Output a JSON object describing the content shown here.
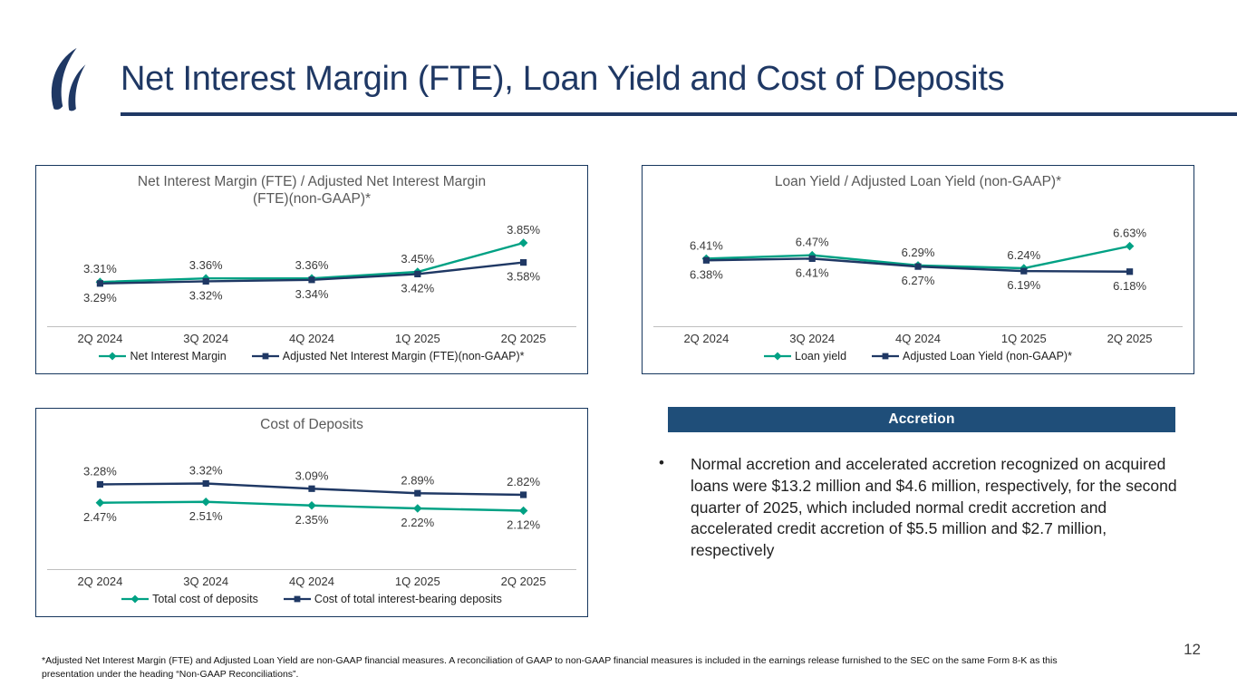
{
  "slide": {
    "title": "Net Interest Margin (FTE), Loan Yield and Cost of Deposits",
    "page_number": "12",
    "footnote": "*Adjusted Net Interest Margin (FTE) and Adjusted Loan Yield are non-GAAP financial measures. A reconciliation of GAAP to non-GAAP financial measures is included in the earnings release furnished to the SEC on the same Form 8-K as this presentation under the heading “Non-GAAP Reconciliations”."
  },
  "accretion": {
    "title": "Accretion",
    "bullet": "Normal accretion and accelerated accretion recognized on acquired loans were $13.2 million and $4.6 million, respectively, for the second quarter of 2025, which included normal credit accretion and accelerated credit accretion of $5.5 million and $2.7 million, respectively"
  },
  "colors": {
    "accent_navy": "#1F3864",
    "accent_green": "#00A184",
    "accretion_bar": "#1F4E79",
    "axis_gray": "#BFBFBF"
  },
  "chart_data": [
    {
      "type": "line",
      "title": "Net Interest Margin (FTE) / Adjusted Net Interest Margin (FTE)(non-GAAP)*",
      "categories": [
        "2Q 2024",
        "3Q 2024",
        "4Q 2024",
        "1Q 2025",
        "2Q 2025"
      ],
      "ylim": [
        3.0,
        4.0
      ],
      "grid": false,
      "legend_position": "bottom",
      "series": [
        {
          "name": "Net Interest Margin",
          "color": "#00A184",
          "marker": "diamond",
          "label_position": "above",
          "values": [
            3.31,
            3.36,
            3.36,
            3.45,
            3.85
          ],
          "labels": [
            "3.31%",
            "3.36%",
            "3.36%",
            "3.45%",
            "3.85%"
          ]
        },
        {
          "name": "Adjusted Net Interest Margin (FTE)(non-GAAP)*",
          "color": "#1F3864",
          "marker": "square",
          "label_position": "below",
          "values": [
            3.29,
            3.32,
            3.34,
            3.42,
            3.58
          ],
          "labels": [
            "3.29%",
            "3.32%",
            "3.34%",
            "3.42%",
            "3.58%"
          ]
        }
      ]
    },
    {
      "type": "line",
      "title": "Loan Yield / Adjusted Loan Yield (non-GAAP)*",
      "categories": [
        "2Q 2024",
        "3Q 2024",
        "4Q 2024",
        "1Q 2025",
        "2Q 2025"
      ],
      "ylim": [
        5.6,
        7.2
      ],
      "grid": false,
      "legend_position": "bottom",
      "series": [
        {
          "name": "Loan yield",
          "color": "#00A184",
          "marker": "diamond",
          "label_position": "above",
          "values": [
            6.41,
            6.47,
            6.29,
            6.24,
            6.63
          ],
          "labels": [
            "6.41%",
            "6.47%",
            "6.29%",
            "6.24%",
            "6.63%"
          ]
        },
        {
          "name": "Adjusted Loan Yield (non-GAAP)*",
          "color": "#1F3864",
          "marker": "square",
          "label_position": "below",
          "values": [
            6.38,
            6.41,
            6.27,
            6.19,
            6.18
          ],
          "labels": [
            "6.38%",
            "6.41%",
            "6.27%",
            "6.19%",
            "6.18%"
          ]
        }
      ]
    },
    {
      "type": "line",
      "title": "Cost of Deposits",
      "categories": [
        "2Q 2024",
        "3Q 2024",
        "4Q 2024",
        "1Q 2025",
        "2Q 2025"
      ],
      "ylim": [
        0.5,
        4.5
      ],
      "grid": false,
      "legend_position": "bottom",
      "series": [
        {
          "name": "Total cost of deposits",
          "color": "#00A184",
          "marker": "diamond",
          "label_position": "below",
          "values": [
            2.47,
            2.51,
            2.35,
            2.22,
            2.12
          ],
          "labels": [
            "2.47%",
            "2.51%",
            "2.35%",
            "2.22%",
            "2.12%"
          ]
        },
        {
          "name": "Cost of total interest-bearing deposits",
          "color": "#1F3864",
          "marker": "square",
          "label_position": "above",
          "values": [
            3.28,
            3.32,
            3.09,
            2.89,
            2.82
          ],
          "labels": [
            "3.28%",
            "3.32%",
            "3.09%",
            "2.89%",
            "2.82%"
          ]
        }
      ]
    }
  ]
}
